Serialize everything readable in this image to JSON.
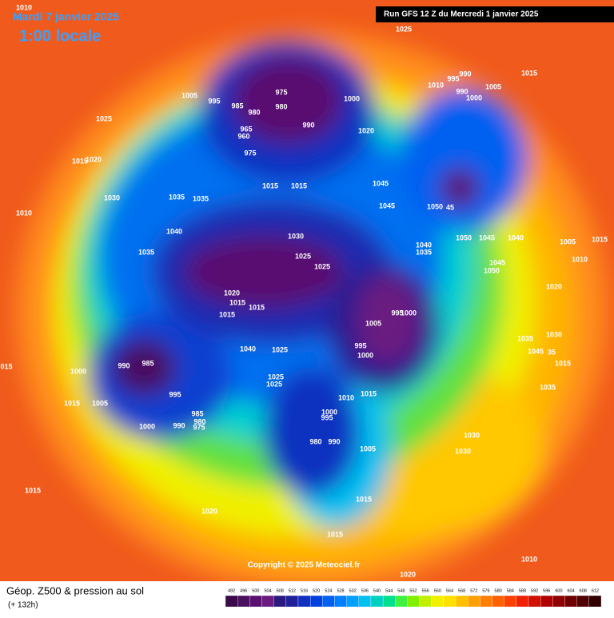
{
  "header": {
    "date": "Mardi 7 janvier 2025",
    "time": "1:00 locale",
    "run": "Run GFS 12 Z du Mercredi 1 janvier 2025"
  },
  "copyright": "Copyright © 2025 Meteociel.fr",
  "footer": {
    "title": "Géop. Z500 & pression au sol",
    "lead": "(+ 132h)"
  },
  "colorbar": {
    "labels": [
      "492",
      "496",
      "500",
      "504",
      "508",
      "512",
      "516",
      "520",
      "524",
      "528",
      "532",
      "536",
      "540",
      "544",
      "548",
      "552",
      "556",
      "560",
      "564",
      "568",
      "572",
      "576",
      "580",
      "584",
      "588",
      "592",
      "596",
      "600",
      "604",
      "608",
      "612"
    ],
    "colors": [
      "#3a0a4a",
      "#4a1060",
      "#5a1070",
      "#6a1a80",
      "#2a1a80",
      "#20209a",
      "#1030c0",
      "#0040e0",
      "#0060f0",
      "#0080ff",
      "#00a0ff",
      "#00c0f0",
      "#00d0c0",
      "#00e090",
      "#40f040",
      "#80f000",
      "#c0f000",
      "#f0f000",
      "#ffe000",
      "#ffc000",
      "#ffa000",
      "#ff8000",
      "#ff6000",
      "#ff4000",
      "#f02000",
      "#d01000",
      "#b00000",
      "#900000",
      "#700000",
      "#500000",
      "#300000"
    ]
  },
  "pressure_labels": [
    "1010",
    "1025",
    "1015",
    "990",
    "995",
    "1010",
    "990",
    "1000",
    "1005",
    "1005",
    "995",
    "985",
    "980",
    "975",
    "980",
    "990",
    "1000",
    "1020",
    "1025",
    "965",
    "960",
    "975",
    "1020",
    "1015",
    "1030",
    "1035",
    "1035",
    "1015",
    "1015",
    "1045",
    "1045",
    "1050",
    "45",
    "1010",
    "1040",
    "1030",
    "1040",
    "1035",
    "1050",
    "1045",
    "1040",
    "1005",
    "1015",
    "1010",
    "1035",
    "1025",
    "1025",
    "1045",
    "1050",
    "1020",
    "1015",
    "1015",
    "1015",
    "1020",
    "995",
    "1000",
    "1005",
    "1035",
    "1030",
    "1040",
    "1025",
    "995",
    "1000",
    "1045",
    "35",
    "015",
    "1000",
    "990",
    "985",
    "1015",
    "1025",
    "1025",
    "995",
    "1010",
    "1015",
    "1035",
    "1015",
    "1005",
    "1000",
    "995",
    "985",
    "980",
    "990",
    "975",
    "1000",
    "1030",
    "980",
    "990",
    "1030",
    "1005",
    "1015",
    "1015",
    "1020",
    "1015",
    "1010",
    "1020"
  ]
}
